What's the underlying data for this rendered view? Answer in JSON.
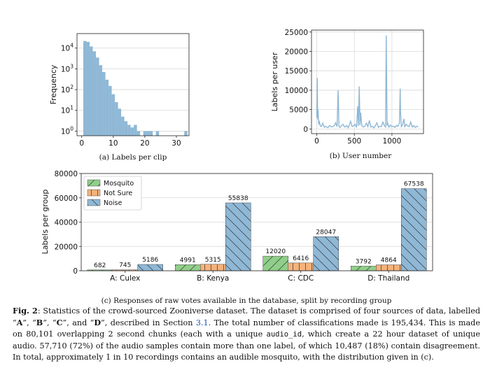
{
  "chart_data": [
    {
      "type": "bar",
      "subcaption": "(a) Labels per clip",
      "ylabel": "Frequency",
      "y_scale": "log",
      "xlim": [
        -1.5,
        34
      ],
      "ylim": [
        0.6,
        50000
      ],
      "x_ticks": [
        "0",
        "10",
        "20",
        "30"
      ],
      "y_ticks": [
        {
          "base": "10",
          "exp": "0"
        },
        {
          "base": "10",
          "exp": "1"
        },
        {
          "base": "10",
          "exp": "2"
        },
        {
          "base": "10",
          "exp": "3"
        },
        {
          "base": "10",
          "exp": "4"
        }
      ],
      "grid": true,
      "color": "#8fb8d6",
      "x": [
        1,
        2,
        3,
        4,
        5,
        6,
        7,
        8,
        9,
        10,
        11,
        12,
        13,
        14,
        15,
        16,
        17,
        18,
        19,
        20,
        21,
        22,
        23,
        24,
        25,
        26,
        27,
        28,
        29,
        30,
        31,
        32,
        33
      ],
      "values": [
        22000,
        20000,
        12000,
        7000,
        3500,
        1500,
        700,
        300,
        150,
        60,
        25,
        12,
        5,
        3,
        2,
        1.5,
        2,
        1,
        0,
        1,
        1,
        1,
        0,
        1,
        0,
        0,
        0,
        0,
        0,
        0,
        0,
        0,
        1
      ]
    },
    {
      "type": "line",
      "subcaption": "(b) User number",
      "ylabel": "Labels per user",
      "xlim": [
        -70,
        1420
      ],
      "ylim": [
        -1200,
        25500
      ],
      "x_ticks": [
        "0",
        "500",
        "1000"
      ],
      "y_ticks": [
        "0",
        "5000",
        "10000",
        "15000",
        "20000",
        "25000"
      ],
      "grid": true,
      "color": "#8fb8d6",
      "points": [
        [
          0,
          3000
        ],
        [
          6,
          13200
        ],
        [
          12,
          2500
        ],
        [
          18,
          5000
        ],
        [
          25,
          1200
        ],
        [
          35,
          1800
        ],
        [
          45,
          900
        ],
        [
          60,
          600
        ],
        [
          80,
          1500
        ],
        [
          100,
          400
        ],
        [
          120,
          700
        ],
        [
          150,
          300
        ],
        [
          170,
          900
        ],
        [
          200,
          500
        ],
        [
          230,
          800
        ],
        [
          250,
          1600
        ],
        [
          270,
          600
        ],
        [
          285,
          10000
        ],
        [
          295,
          700
        ],
        [
          310,
          400
        ],
        [
          330,
          900
        ],
        [
          350,
          1200
        ],
        [
          370,
          500
        ],
        [
          400,
          900
        ],
        [
          420,
          300
        ],
        [
          450,
          2000
        ],
        [
          470,
          600
        ],
        [
          490,
          800
        ],
        [
          510,
          1200
        ],
        [
          530,
          400
        ],
        [
          545,
          5900
        ],
        [
          555,
          800
        ],
        [
          565,
          11000
        ],
        [
          575,
          1000
        ],
        [
          585,
          4200
        ],
        [
          600,
          800
        ],
        [
          620,
          500
        ],
        [
          640,
          700
        ],
        [
          660,
          1500
        ],
        [
          680,
          600
        ],
        [
          700,
          2200
        ],
        [
          720,
          500
        ],
        [
          740,
          700
        ],
        [
          760,
          300
        ],
        [
          780,
          900
        ],
        [
          800,
          1600
        ],
        [
          820,
          400
        ],
        [
          840,
          700
        ],
        [
          860,
          600
        ],
        [
          880,
          1800
        ],
        [
          900,
          800
        ],
        [
          915,
          500
        ],
        [
          925,
          24100
        ],
        [
          935,
          900
        ],
        [
          945,
          1400
        ],
        [
          960,
          500
        ],
        [
          980,
          1000
        ],
        [
          1000,
          600
        ],
        [
          1020,
          700
        ],
        [
          1040,
          400
        ],
        [
          1060,
          900
        ],
        [
          1080,
          700
        ],
        [
          1100,
          1500
        ],
        [
          1110,
          10400
        ],
        [
          1115,
          4400
        ],
        [
          1125,
          600
        ],
        [
          1140,
          1000
        ],
        [
          1160,
          2600
        ],
        [
          1170,
          600
        ],
        [
          1190,
          1200
        ],
        [
          1210,
          800
        ],
        [
          1230,
          600
        ],
        [
          1250,
          1800
        ],
        [
          1270,
          500
        ],
        [
          1290,
          900
        ],
        [
          1310,
          400
        ],
        [
          1330,
          700
        ],
        [
          1350,
          500
        ]
      ]
    },
    {
      "type": "bar",
      "subcaption": "(c) Responses of raw votes available in the database, split by recording group",
      "ylabel": "Labels per group",
      "ylim": [
        0,
        80000
      ],
      "y_ticks": [
        "0",
        "20000",
        "40000",
        "60000",
        "80000"
      ],
      "grid": true,
      "legend_position": "top-left",
      "categories": [
        "A: Culex",
        "B: Kenya",
        "C: CDC",
        "D: Thailand"
      ],
      "series": [
        {
          "name": "Mosquito",
          "values": [
            682,
            4991,
            12020,
            3792
          ],
          "color": "#8fcf8a",
          "hatch": "/"
        },
        {
          "name": "Not Sure",
          "values": [
            745,
            5315,
            6416,
            4864
          ],
          "color": "#f5b27a",
          "hatch": "|"
        },
        {
          "name": "Noise",
          "values": [
            5186,
            55838,
            28047,
            67538
          ],
          "color": "#8fb8d6",
          "hatch": "\\"
        }
      ],
      "data_labels": [
        [
          "682",
          "745",
          "5186"
        ],
        [
          "4991",
          "5315",
          "55838"
        ],
        [
          "12020",
          "6416",
          "28047"
        ],
        [
          "3792",
          "4864",
          "67538"
        ]
      ]
    }
  ],
  "caption": {
    "label": "Fig. 2",
    "p1": ": Statistics of the crowd-sourced Zooniverse dataset. The dataset is comprised of four sources of data, labelled “",
    "A": "A",
    "s1": "”, “",
    "B": "B",
    "s2": "”, “",
    "C": "C",
    "s3": "”, and “",
    "D": "D",
    "p2": "”, described in Section ",
    "section": "3.1",
    "p3": ". The total number of classifications made is 195,434. This is made on 80,101 overlapping 2 second chunks (each with a unique ",
    "code": "audio_id",
    "p4": ", which create a 22 hour dataset of unique audio. 57,710 (72%) of the audio samples contain more than one label, of which 10,487 (18%) contain disagreement. In total, approximately 1 in 10 recordings contains an audible mosquito, with the distribution given in (c)."
  }
}
